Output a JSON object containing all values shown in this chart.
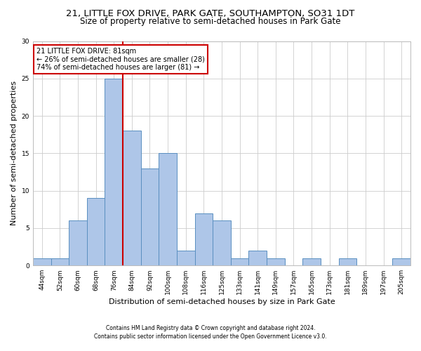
{
  "title_line1": "21, LITTLE FOX DRIVE, PARK GATE, SOUTHAMPTON, SO31 1DT",
  "title_line2": "Size of property relative to semi-detached houses in Park Gate",
  "xlabel": "Distribution of semi-detached houses by size in Park Gate",
  "ylabel": "Number of semi-detached properties",
  "categories": [
    "44sqm",
    "52sqm",
    "60sqm",
    "68sqm",
    "76sqm",
    "84sqm",
    "92sqm",
    "100sqm",
    "108sqm",
    "116sqm",
    "125sqm",
    "133sqm",
    "141sqm",
    "149sqm",
    "157sqm",
    "165sqm",
    "173sqm",
    "181sqm",
    "189sqm",
    "197sqm",
    "205sqm"
  ],
  "values": [
    1,
    1,
    6,
    9,
    25,
    18,
    13,
    15,
    2,
    7,
    6,
    1,
    2,
    1,
    0,
    1,
    0,
    1,
    0,
    0,
    1
  ],
  "bar_color": "#aec6e8",
  "bar_edge_color": "#5a8fc0",
  "vline_color": "#cc0000",
  "annotation_text": "21 LITTLE FOX DRIVE: 81sqm\n← 26% of semi-detached houses are smaller (28)\n74% of semi-detached houses are larger (81) →",
  "annotation_box_color": "#ffffff",
  "annotation_box_edge": "#cc0000",
  "ylim": [
    0,
    30
  ],
  "yticks": [
    0,
    5,
    10,
    15,
    20,
    25,
    30
  ],
  "footnote1": "Contains HM Land Registry data © Crown copyright and database right 2024.",
  "footnote2": "Contains public sector information licensed under the Open Government Licence v3.0.",
  "bg_color": "#ffffff",
  "grid_color": "#cccccc",
  "title_fontsize": 9.5,
  "subtitle_fontsize": 8.5,
  "tick_fontsize": 6.5,
  "ylabel_fontsize": 8,
  "xlabel_fontsize": 8,
  "annot_fontsize": 7,
  "footnote_fontsize": 5.5
}
